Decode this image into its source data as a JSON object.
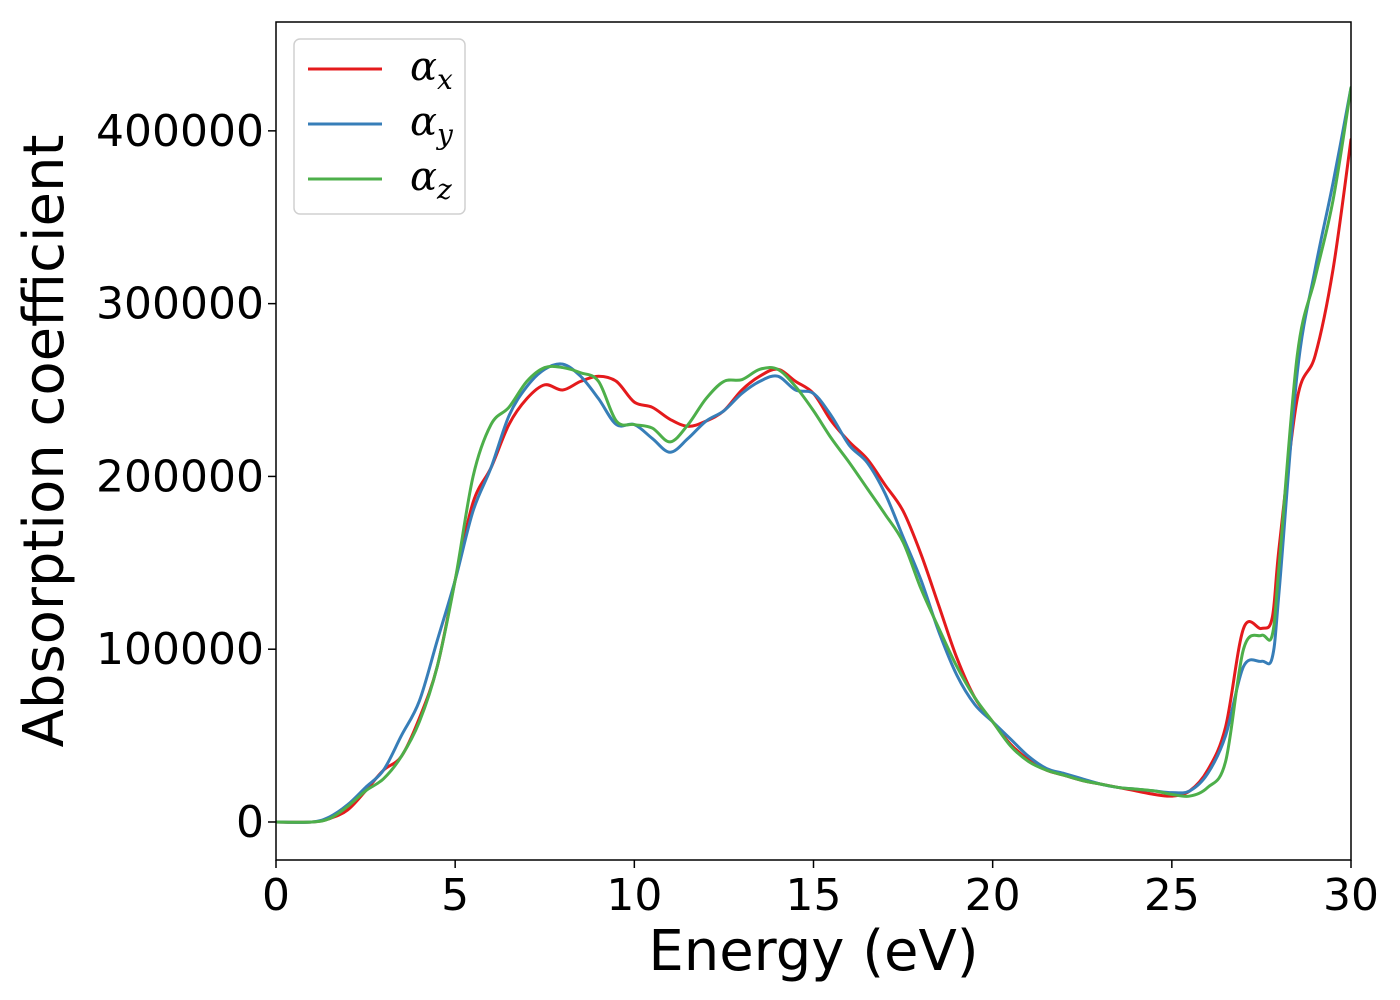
{
  "chart_data": {
    "type": "line",
    "xlabel": "Energy (eV)",
    "ylabel": "Absorption coefficient",
    "xlim": [
      0,
      30
    ],
    "ylim": [
      -22000,
      463000
    ],
    "x_ticks": [
      0,
      5,
      10,
      15,
      20,
      25,
      30
    ],
    "y_ticks": [
      0,
      100000,
      200000,
      300000,
      400000
    ],
    "grid": false,
    "legend_position": "top-left",
    "series": [
      {
        "name": "α",
        "subscript": "x",
        "color": "#e41a1c",
        "points": [
          [
            0,
            0
          ],
          [
            1,
            0
          ],
          [
            1.5,
            2000
          ],
          [
            2,
            7000
          ],
          [
            2.5,
            18000
          ],
          [
            3,
            30000
          ],
          [
            3.5,
            38000
          ],
          [
            4,
            60000
          ],
          [
            4.5,
            90000
          ],
          [
            5,
            140000
          ],
          [
            5.5,
            185000
          ],
          [
            6,
            205000
          ],
          [
            6.5,
            230000
          ],
          [
            7,
            245000
          ],
          [
            7.5,
            253000
          ],
          [
            8,
            250000
          ],
          [
            8.5,
            255000
          ],
          [
            9,
            258000
          ],
          [
            9.5,
            255000
          ],
          [
            10,
            243000
          ],
          [
            10.5,
            240000
          ],
          [
            11,
            233000
          ],
          [
            11.5,
            229000
          ],
          [
            12,
            232000
          ],
          [
            12.5,
            238000
          ],
          [
            13,
            250000
          ],
          [
            13.5,
            258000
          ],
          [
            14,
            262000
          ],
          [
            14.5,
            255000
          ],
          [
            15,
            248000
          ],
          [
            15.5,
            232000
          ],
          [
            16,
            220000
          ],
          [
            16.5,
            210000
          ],
          [
            17,
            195000
          ],
          [
            17.5,
            180000
          ],
          [
            18,
            155000
          ],
          [
            18.5,
            125000
          ],
          [
            19,
            95000
          ],
          [
            19.5,
            72000
          ],
          [
            20,
            58000
          ],
          [
            20.5,
            45000
          ],
          [
            21,
            36000
          ],
          [
            21.5,
            30000
          ],
          [
            22,
            27000
          ],
          [
            22.5,
            24000
          ],
          [
            23,
            22000
          ],
          [
            23.5,
            20000
          ],
          [
            24,
            18000
          ],
          [
            24.5,
            16000
          ],
          [
            25,
            15000
          ],
          [
            25.5,
            18000
          ],
          [
            26,
            30000
          ],
          [
            26.5,
            55000
          ],
          [
            27,
            112000
          ],
          [
            27.5,
            112000
          ],
          [
            27.8,
            118000
          ],
          [
            28,
            160000
          ],
          [
            28.5,
            245000
          ],
          [
            29,
            270000
          ],
          [
            29.5,
            320000
          ],
          [
            30,
            395000
          ]
        ]
      },
      {
        "name": "α",
        "subscript": "y",
        "color": "#377eb8",
        "points": [
          [
            0,
            0
          ],
          [
            1,
            0
          ],
          [
            1.5,
            3000
          ],
          [
            2,
            10000
          ],
          [
            2.5,
            20000
          ],
          [
            3,
            30000
          ],
          [
            3.5,
            50000
          ],
          [
            4,
            70000
          ],
          [
            4.5,
            105000
          ],
          [
            5,
            140000
          ],
          [
            5.5,
            180000
          ],
          [
            6,
            205000
          ],
          [
            6.5,
            235000
          ],
          [
            7,
            252000
          ],
          [
            7.5,
            262000
          ],
          [
            8,
            265000
          ],
          [
            8.5,
            258000
          ],
          [
            9,
            245000
          ],
          [
            9.5,
            230000
          ],
          [
            10,
            230000
          ],
          [
            10.5,
            222000
          ],
          [
            11,
            214000
          ],
          [
            11.5,
            222000
          ],
          [
            12,
            232000
          ],
          [
            12.5,
            238000
          ],
          [
            13,
            248000
          ],
          [
            13.5,
            255000
          ],
          [
            14,
            258000
          ],
          [
            14.5,
            250000
          ],
          [
            15,
            248000
          ],
          [
            15.5,
            235000
          ],
          [
            16,
            218000
          ],
          [
            16.5,
            208000
          ],
          [
            17,
            190000
          ],
          [
            17.5,
            165000
          ],
          [
            18,
            140000
          ],
          [
            18.5,
            110000
          ],
          [
            19,
            85000
          ],
          [
            19.5,
            68000
          ],
          [
            20,
            58000
          ],
          [
            20.5,
            48000
          ],
          [
            21,
            38000
          ],
          [
            21.5,
            31000
          ],
          [
            22,
            28000
          ],
          [
            22.5,
            25000
          ],
          [
            23,
            22000
          ],
          [
            23.5,
            20000
          ],
          [
            24,
            19000
          ],
          [
            24.5,
            18000
          ],
          [
            25,
            17000
          ],
          [
            25.5,
            18000
          ],
          [
            26,
            28000
          ],
          [
            26.5,
            50000
          ],
          [
            27,
            90000
          ],
          [
            27.5,
            93000
          ],
          [
            27.8,
            95000
          ],
          [
            28,
            135000
          ],
          [
            28.5,
            260000
          ],
          [
            29,
            320000
          ],
          [
            29.5,
            370000
          ],
          [
            30,
            425000
          ]
        ]
      },
      {
        "name": "α",
        "subscript": "z",
        "color": "#4daf4a",
        "points": [
          [
            0,
            0
          ],
          [
            1,
            0
          ],
          [
            1.5,
            2000
          ],
          [
            2,
            9000
          ],
          [
            2.5,
            18000
          ],
          [
            3,
            25000
          ],
          [
            3.5,
            38000
          ],
          [
            4,
            58000
          ],
          [
            4.5,
            90000
          ],
          [
            5,
            140000
          ],
          [
            5.5,
            200000
          ],
          [
            6,
            230000
          ],
          [
            6.5,
            240000
          ],
          [
            7,
            255000
          ],
          [
            7.5,
            263000
          ],
          [
            8,
            263000
          ],
          [
            8.5,
            260000
          ],
          [
            9,
            255000
          ],
          [
            9.5,
            232000
          ],
          [
            10,
            230000
          ],
          [
            10.5,
            228000
          ],
          [
            11,
            220000
          ],
          [
            11.5,
            230000
          ],
          [
            12,
            245000
          ],
          [
            12.5,
            255000
          ],
          [
            13,
            256000
          ],
          [
            13.5,
            262000
          ],
          [
            14,
            262000
          ],
          [
            14.5,
            252000
          ],
          [
            15,
            238000
          ],
          [
            15.5,
            222000
          ],
          [
            16,
            208000
          ],
          [
            16.5,
            193000
          ],
          [
            17,
            178000
          ],
          [
            17.5,
            162000
          ],
          [
            18,
            135000
          ],
          [
            18.5,
            112000
          ],
          [
            19,
            90000
          ],
          [
            19.5,
            72000
          ],
          [
            20,
            58000
          ],
          [
            20.5,
            44000
          ],
          [
            21,
            35000
          ],
          [
            21.5,
            30000
          ],
          [
            22,
            27000
          ],
          [
            22.5,
            24000
          ],
          [
            23,
            22000
          ],
          [
            23.5,
            20000
          ],
          [
            24,
            19000
          ],
          [
            24.5,
            18000
          ],
          [
            25,
            16000
          ],
          [
            25.5,
            15000
          ],
          [
            26,
            20000
          ],
          [
            26.5,
            35000
          ],
          [
            27,
            100000
          ],
          [
            27.5,
            108000
          ],
          [
            27.8,
            108000
          ],
          [
            28,
            150000
          ],
          [
            28.5,
            270000
          ],
          [
            29,
            315000
          ],
          [
            29.5,
            360000
          ],
          [
            30,
            425000
          ]
        ]
      }
    ]
  }
}
